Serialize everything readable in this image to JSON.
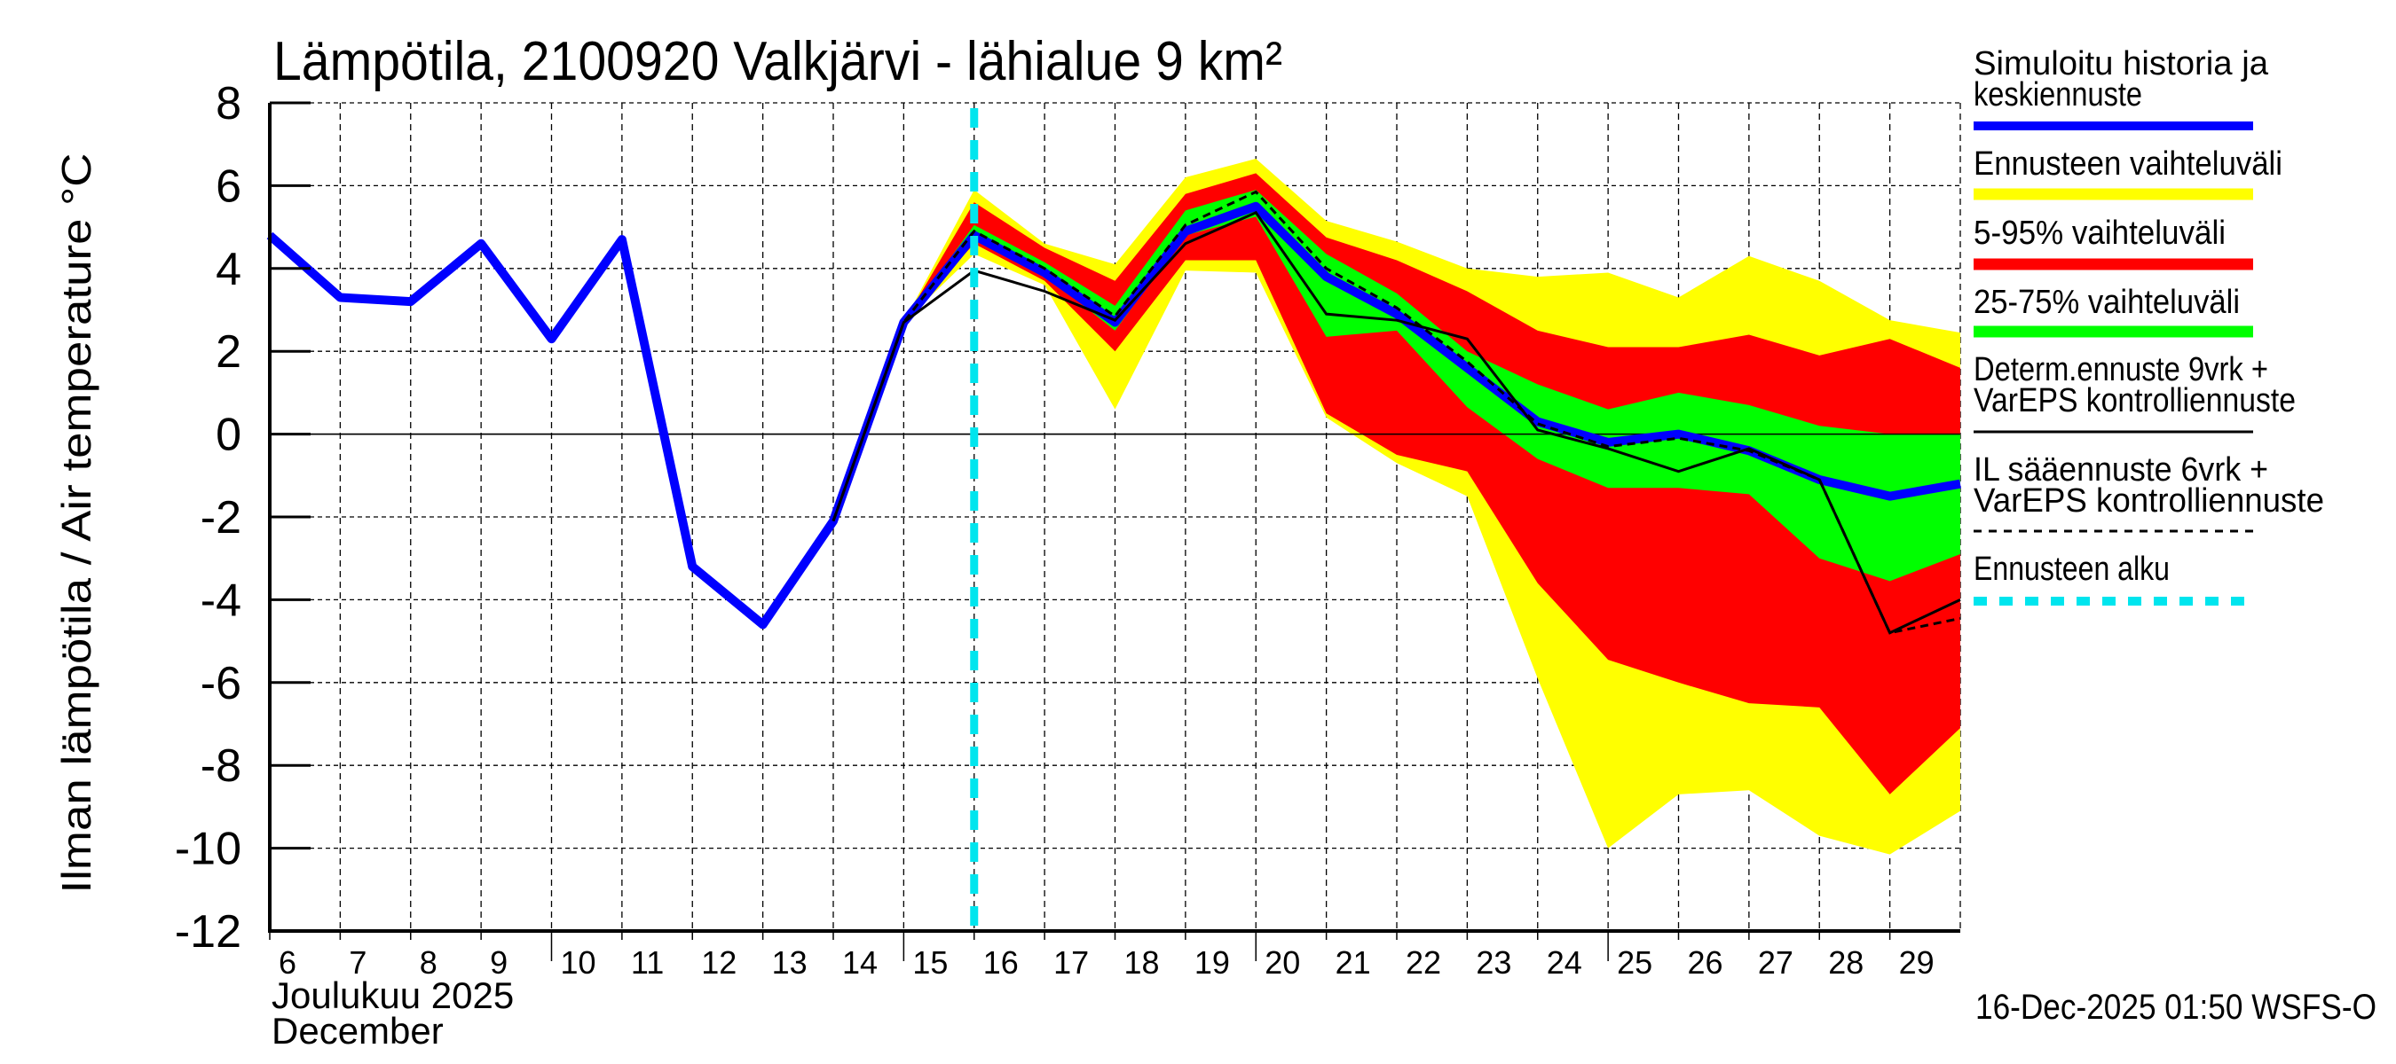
{
  "chart_data": {
    "type": "line",
    "title": "Lämpötila, 2100920 Valkjärvi - lähialue 9 km²",
    "ylabel": "Ilman lämpötila / Air temperature   °C",
    "xlabel_line1": "Joulukuu  2025",
    "xlabel_line2": "December",
    "footer": "16-Dec-2025 01:50 WSFS-O",
    "ylim": [
      -12,
      8
    ],
    "yticks": [
      8,
      6,
      4,
      2,
      0,
      -2,
      -4,
      -6,
      -8,
      -10,
      -12
    ],
    "xlim": [
      6,
      30
    ],
    "xtick_labels": [
      "6",
      "7",
      "8",
      "9",
      "10",
      "11",
      "12",
      "13",
      "14",
      "15",
      "16",
      "17",
      "18",
      "19",
      "20",
      "21",
      "22",
      "23",
      "24",
      "25",
      "26",
      "27",
      "28",
      "29"
    ],
    "grid": true,
    "legend_placement": "right",
    "forecast_start_day": 16,
    "colors": {
      "history": "#0000ff",
      "full_range": "#ffff00",
      "p5_95": "#ff0000",
      "p25_75": "#00ff00",
      "determ": "#000000",
      "il": "#000000",
      "forecast_start": "#00e5ee"
    },
    "legend": {
      "history": [
        "Simuloitu historia ja",
        "keskiennuste"
      ],
      "full_range": [
        "Ennusteen vaihteluväli"
      ],
      "p5_95": [
        "5-95% vaihteluväli"
      ],
      "p25_75": [
        "25-75% vaihteluväli"
      ],
      "determ": [
        "Determ.ennuste 9vrk +",
        "VarEPS kontrolliennuste"
      ],
      "il": [
        "IL sääennuste 6vrk  +",
        "  VarEPS kontrolliennuste"
      ],
      "forecast_start": [
        "Ennusteen alku"
      ]
    },
    "history": {
      "x": [
        6,
        7,
        8,
        9,
        10,
        11,
        12,
        13,
        14,
        15,
        16,
        17,
        18,
        19,
        20,
        21,
        22,
        23,
        24,
        25,
        26,
        27,
        28,
        29,
        30
      ],
      "y": [
        4.8,
        3.3,
        3.2,
        4.6,
        2.3,
        4.7,
        -3.2,
        -4.6,
        -2.1,
        2.7,
        4.8,
        3.9,
        2.7,
        4.9,
        5.5,
        3.8,
        2.9,
        1.6,
        0.3,
        -0.2,
        0.0,
        -0.4,
        -1.1,
        -1.5,
        -1.2
      ]
    },
    "bands": {
      "x": [
        15,
        16,
        17,
        18,
        19,
        20,
        21,
        22,
        23,
        24,
        25,
        26,
        27,
        28,
        29,
        30
      ],
      "full_upper": [
        2.7,
        5.9,
        4.6,
        4.1,
        6.2,
        6.65,
        5.15,
        4.65,
        4.0,
        3.8,
        3.9,
        3.3,
        4.3,
        3.7,
        2.75,
        2.45
      ],
      "full_lower": [
        2.7,
        4.35,
        3.6,
        0.6,
        3.95,
        3.9,
        0.4,
        -0.7,
        -1.5,
        -5.9,
        -10.0,
        -8.7,
        -8.6,
        -9.7,
        -10.15,
        -9.1
      ],
      "p95": [
        2.7,
        5.6,
        4.5,
        3.7,
        5.8,
        6.3,
        4.75,
        4.2,
        3.45,
        2.5,
        2.1,
        2.1,
        2.4,
        1.9,
        2.3,
        1.6
      ],
      "p5": [
        2.7,
        4.6,
        3.7,
        2.0,
        4.2,
        4.2,
        0.5,
        -0.5,
        -0.9,
        -3.6,
        -5.45,
        -6.0,
        -6.5,
        -6.6,
        -8.7,
        -7.1
      ],
      "p75": [
        2.7,
        5.05,
        4.15,
        3.1,
        5.4,
        5.9,
        4.35,
        3.4,
        2.0,
        1.2,
        0.6,
        1.0,
        0.7,
        0.2,
        0.0,
        0.0
      ],
      "p25": [
        2.7,
        4.7,
        3.85,
        2.5,
        4.8,
        5.25,
        2.35,
        2.5,
        0.65,
        -0.6,
        -1.3,
        -1.3,
        -1.45,
        -3.0,
        -3.55,
        -2.9
      ]
    },
    "determ": {
      "x": [
        14,
        15,
        16,
        17,
        18,
        19,
        20,
        21,
        22,
        23,
        24,
        25,
        26,
        27,
        28,
        29,
        30
      ],
      "y": [
        -2.1,
        2.7,
        3.95,
        3.45,
        2.75,
        4.6,
        5.35,
        2.9,
        2.75,
        2.3,
        0.1,
        -0.35,
        -0.9,
        -0.35,
        -1.1,
        -4.8,
        -4.0
      ]
    },
    "il": {
      "x": [
        14,
        15,
        16,
        17,
        18,
        19,
        20,
        21,
        22,
        23,
        24,
        25,
        26,
        27,
        28,
        29,
        30
      ],
      "y": [
        -2.1,
        2.7,
        4.9,
        4.0,
        2.85,
        5.05,
        5.85,
        4.0,
        3.05,
        1.75,
        0.25,
        -0.3,
        -0.1,
        -0.4,
        -1.1,
        -4.8,
        -4.45
      ]
    }
  }
}
